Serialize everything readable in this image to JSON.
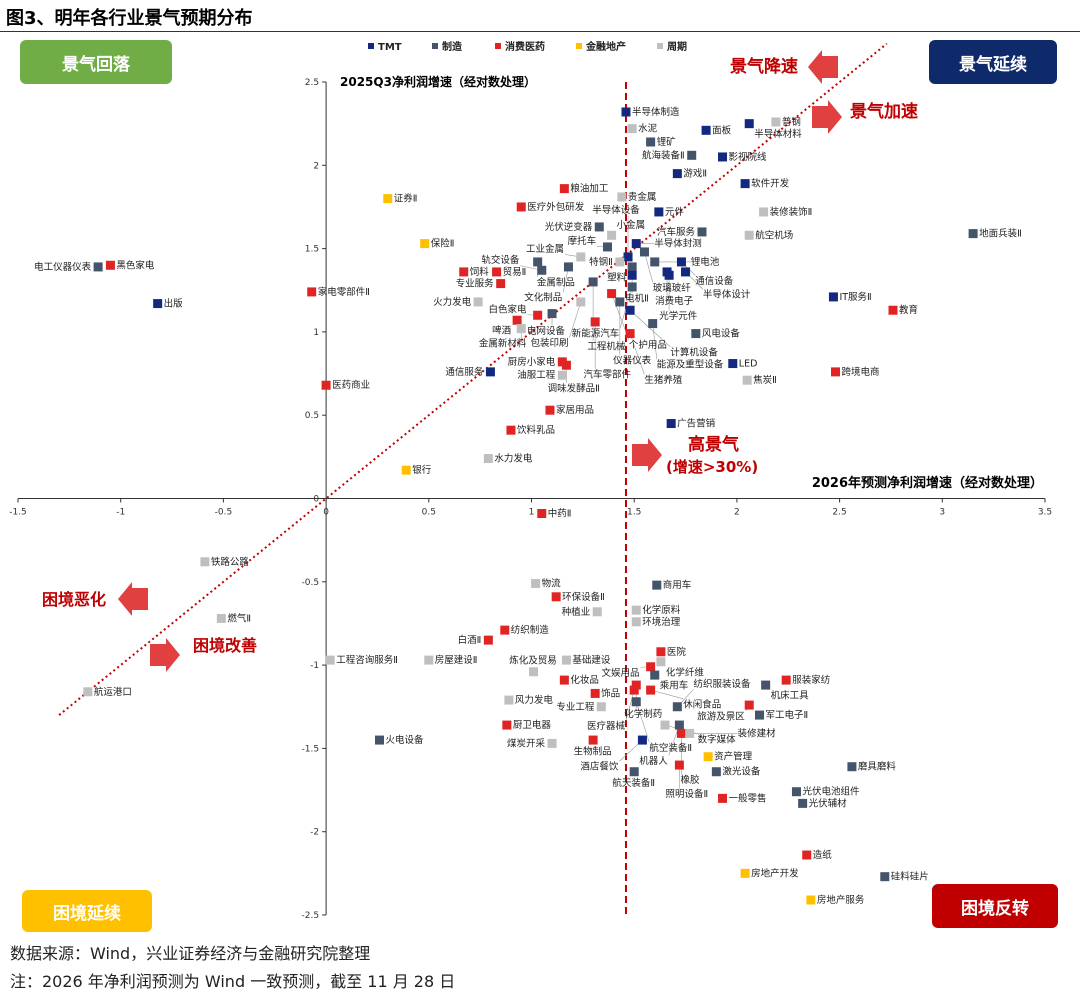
{
  "figure_title": "图3、明年各行业景气预期分布",
  "quadrants": {
    "top_left": "景气回落",
    "top_right": "景气延续",
    "bottom_left": "困境延续",
    "bottom_right": "困境反转"
  },
  "annotations": {
    "decel": "景气降速",
    "accel": "景气加速",
    "high": "高景气",
    "high_sub": "(增速>30%)",
    "worsen": "困境恶化",
    "improve": "困境改善"
  },
  "footer": {
    "source": "数据来源：Wind，兴业证券经济与金融研究院整理",
    "note": "注：2026 年净利润预测为 Wind 一致预测，截至 11 月 28 日"
  },
  "colors": {
    "TMT": "#13287f",
    "制造": "#44546a",
    "消费医药": "#e02424",
    "金融地产": "#ffc000",
    "周期": "#bfbfbf",
    "accent": "#c00000"
  },
  "chart_data": {
    "type": "scatter",
    "xlabel": "2026年预测净利润增速（经对数处理）",
    "ylabel": "2025Q3净利润增速（经对数处理）",
    "xlim": [
      -1.5,
      3.5
    ],
    "ylim": [
      -2.5,
      2.5
    ],
    "xticks": [
      -1.5,
      -1,
      -0.5,
      0,
      0.5,
      1,
      1.5,
      2,
      2.5,
      3,
      3.5
    ],
    "yticks": [
      -2.5,
      -2,
      -1.5,
      -1,
      -0.5,
      0,
      0.5,
      1,
      1.5,
      2,
      2.5
    ],
    "legend": [
      "TMT",
      "制造",
      "消费医药",
      "金融地产",
      "周期"
    ],
    "legend_position": "top",
    "threshold_x": 1.46,
    "diagonal": "y=x",
    "points": [
      [
        "半导体制造",
        "TMT",
        1.46,
        2.32
      ],
      [
        "水泥",
        "周期",
        1.49,
        2.22
      ],
      [
        "锂矿",
        "制造",
        1.58,
        2.14
      ],
      [
        "航海装备Ⅱ",
        "制造",
        1.78,
        2.06
      ],
      [
        "面板",
        "TMT",
        1.85,
        2.21
      ],
      [
        "半导体材料",
        "TMT",
        2.06,
        2.25
      ],
      [
        "普钢",
        "周期",
        2.19,
        2.26
      ],
      [
        "影视院线",
        "TMT",
        1.93,
        2.05
      ],
      [
        "游戏Ⅱ",
        "TMT",
        1.71,
        1.95
      ],
      [
        "软件开发",
        "TMT",
        2.04,
        1.89
      ],
      [
        "粮油加工",
        "消费医药",
        1.16,
        1.86
      ],
      [
        "医疗外包研发",
        "消费医药",
        0.95,
        1.75
      ],
      [
        "贵金属",
        "周期",
        1.44,
        1.81
      ],
      [
        "证券Ⅱ",
        "金融地产",
        0.3,
        1.8
      ],
      [
        "元件",
        "TMT",
        1.62,
        1.72
      ],
      [
        "装修装饰Ⅱ",
        "周期",
        2.13,
        1.72
      ],
      [
        "汽车服务",
        "制造",
        1.83,
        1.6
      ],
      [
        "航空机场",
        "周期",
        2.06,
        1.58
      ],
      [
        "地面兵装Ⅱ",
        "制造",
        3.15,
        1.59
      ],
      [
        "光伏逆变器",
        "制造",
        1.33,
        1.63
      ],
      [
        "小金属",
        "周期",
        1.39,
        1.58
      ],
      [
        "保险Ⅱ",
        "金融地产",
        0.48,
        1.53
      ],
      [
        "黑色家电",
        "消费医药",
        -1.05,
        1.4
      ],
      [
        "电工仪器仪表",
        "制造",
        -1.11,
        1.39
      ],
      [
        "出版",
        "TMT",
        -0.82,
        1.17
      ],
      [
        "家电零部件Ⅱ",
        "消费医药",
        -0.07,
        1.24
      ],
      [
        "半导体封测",
        "TMT",
        1.51,
        1.53
      ],
      [
        "摩托车",
        "制造",
        1.37,
        1.51
      ],
      [
        "玻璃玻纤",
        "制造",
        1.55,
        1.48
      ],
      [
        "半导体设备",
        "TMT",
        1.47,
        1.45
      ],
      [
        "锂电池",
        "制造",
        1.6,
        1.42
      ],
      [
        "特钢Ⅱ",
        "周期",
        1.43,
        1.42
      ],
      [
        "工业金属",
        "周期",
        1.24,
        1.45
      ],
      [
        "金属制品",
        "制造",
        1.03,
        1.42
      ],
      [
        "文化制品",
        "制造",
        1.18,
        1.39
      ],
      [
        "轨交设备",
        "制造",
        1.05,
        1.37
      ],
      [
        "通信设备",
        "TMT",
        1.73,
        1.42
      ],
      [
        "消费电子",
        "TMT",
        1.66,
        1.36
      ],
      [
        "半导体设计",
        "TMT",
        1.75,
        1.36
      ],
      [
        "光学元件",
        "TMT",
        1.67,
        1.34
      ],
      [
        "塑料",
        "制造",
        1.49,
        1.39
      ],
      [
        "电机Ⅱ",
        "TMT",
        1.49,
        1.34
      ],
      [
        "新能源汽车",
        "制造",
        1.49,
        1.27
      ],
      [
        "贸易Ⅱ",
        "消费医药",
        0.83,
        1.36
      ],
      [
        "饲料",
        "消费医药",
        0.67,
        1.36
      ],
      [
        "专业服务",
        "消费医药",
        0.85,
        1.29
      ],
      [
        "工程机械",
        "制造",
        1.3,
        1.3
      ],
      [
        "个护用品",
        "消费医药",
        1.39,
        1.23
      ],
      [
        "包装印刷",
        "周期",
        1.24,
        1.18
      ],
      [
        "仪器仪表",
        "制造",
        1.43,
        1.18
      ],
      [
        "计算机设备",
        "TMT",
        1.48,
        1.13
      ],
      [
        "白色家电",
        "消费医药",
        1.03,
        1.1
      ],
      [
        "火力发电",
        "周期",
        0.74,
        1.18
      ],
      [
        "啤酒",
        "消费医药",
        0.93,
        1.07
      ],
      [
        "金属新材料",
        "周期",
        0.95,
        1.02
      ],
      [
        "电网设备",
        "制造",
        1.1,
        1.11
      ],
      [
        "汽车零部件",
        "消费医药",
        1.31,
        1.06
      ],
      [
        "能源及重型设备",
        "制造",
        1.59,
        1.05
      ],
      [
        "风电设备",
        "制造",
        1.8,
        0.99
      ],
      [
        "生猪养殖",
        "消费医药",
        1.48,
        0.99
      ],
      [
        "LED",
        "TMT",
        1.98,
        0.81
      ],
      [
        "焦炭Ⅱ",
        "周期",
        2.05,
        0.71
      ],
      [
        "厨房小家电",
        "消费医药",
        1.15,
        0.82
      ],
      [
        "调味发酵品Ⅱ",
        "消费医药",
        1.17,
        0.8
      ],
      [
        "油服工程",
        "周期",
        1.15,
        0.74
      ],
      [
        "通信服务",
        "TMT",
        0.8,
        0.76
      ],
      [
        "医药商业",
        "消费医药",
        0.0,
        0.68
      ],
      [
        "家居用品",
        "消费医药",
        1.09,
        0.53
      ],
      [
        "广告营销",
        "TMT",
        1.68,
        0.45
      ],
      [
        "饮料乳品",
        "消费医药",
        0.9,
        0.41
      ],
      [
        "水力发电",
        "周期",
        0.79,
        0.24
      ],
      [
        "银行",
        "金融地产",
        0.39,
        0.17
      ],
      [
        "IT服务Ⅱ",
        "TMT",
        2.47,
        1.21
      ],
      [
        "教育",
        "消费医药",
        2.76,
        1.13
      ],
      [
        "跨境电商",
        "消费医药",
        2.48,
        0.76
      ],
      [
        "中药Ⅱ",
        "消费医药",
        1.05,
        -0.09
      ],
      [
        "铁路公路",
        "周期",
        -0.59,
        -0.38
      ],
      [
        "燃气Ⅱ",
        "周期",
        -0.51,
        -0.72
      ],
      [
        "航运港口",
        "周期",
        -1.16,
        -1.16
      ],
      [
        "物流",
        "周期",
        1.02,
        -0.51
      ],
      [
        "环保设备Ⅱ",
        "消费医药",
        1.12,
        -0.59
      ],
      [
        "种植业",
        "周期",
        1.32,
        -0.68
      ],
      [
        "商用车",
        "制造",
        1.61,
        -0.52
      ],
      [
        "化学原料",
        "周期",
        1.51,
        -0.67
      ],
      [
        "环境治理",
        "周期",
        1.51,
        -0.74
      ],
      [
        "纺织制造",
        "消费医药",
        0.87,
        -0.79
      ],
      [
        "白酒Ⅱ",
        "消费医药",
        0.79,
        -0.85
      ],
      [
        "房屋建设Ⅱ",
        "周期",
        0.5,
        -0.97
      ],
      [
        "工程咨询服务Ⅱ",
        "周期",
        0.02,
        -0.97
      ],
      [
        "基础建设",
        "周期",
        1.17,
        -0.97
      ],
      [
        "炼化及贸易",
        "周期",
        1.01,
        -1.04
      ],
      [
        "医院",
        "消费医药",
        1.63,
        -0.92
      ],
      [
        "化学纤维",
        "周期",
        1.63,
        -0.98
      ],
      [
        "文娱用品",
        "消费医药",
        1.58,
        -1.01
      ],
      [
        "乘用车",
        "制造",
        1.6,
        -1.06
      ],
      [
        "化学制药",
        "消费医药",
        1.51,
        -1.12
      ],
      [
        "化妆品",
        "消费医药",
        1.16,
        -1.09
      ],
      [
        "饰品",
        "消费医药",
        1.31,
        -1.17
      ],
      [
        "医疗器械",
        "消费医药",
        1.5,
        -1.15
      ],
      [
        "休闲食品",
        "消费医药",
        1.58,
        -1.15
      ],
      [
        "风力发电",
        "周期",
        0.89,
        -1.21
      ],
      [
        "航空装备Ⅱ",
        "制造",
        1.51,
        -1.22
      ],
      [
        "专业工程",
        "周期",
        1.34,
        -1.25
      ],
      [
        "纺织服装设备",
        "制造",
        1.71,
        -1.25
      ],
      [
        "服装家纺",
        "消费医药",
        2.24,
        -1.09
      ],
      [
        "机床工具",
        "制造",
        2.14,
        -1.12
      ],
      [
        "旅游及景区",
        "消费医药",
        2.06,
        -1.24
      ],
      [
        "军工电子Ⅱ",
        "制造",
        2.11,
        -1.3
      ],
      [
        "数字媒体",
        "周期",
        1.65,
        -1.36
      ],
      [
        "机器人",
        "制造",
        1.72,
        -1.36
      ],
      [
        "橡胶",
        "消费医药",
        1.73,
        -1.41
      ],
      [
        "装修建材",
        "周期",
        1.77,
        -1.41
      ],
      [
        "厨卫电器",
        "消费医药",
        0.88,
        -1.36
      ],
      [
        "煤炭开采",
        "周期",
        1.1,
        -1.47
      ],
      [
        "生物制品",
        "消费医药",
        1.3,
        -1.45
      ],
      [
        "酒店餐饮",
        "TMT",
        1.54,
        -1.45
      ],
      [
        "火电设备",
        "制造",
        0.26,
        -1.45
      ],
      [
        "资产管理",
        "金融地产",
        1.86,
        -1.55
      ],
      [
        "照明设备Ⅱ",
        "消费医药",
        1.72,
        -1.6
      ],
      [
        "航天装备Ⅱ",
        "制造",
        1.5,
        -1.64
      ],
      [
        "磨具磨料",
        "制造",
        2.56,
        -1.61
      ],
      [
        "激光设备",
        "制造",
        1.9,
        -1.64
      ],
      [
        "光伏电池组件",
        "制造",
        2.29,
        -1.76
      ],
      [
        "光伏辅材",
        "制造",
        2.32,
        -1.83
      ],
      [
        "一般零售",
        "消费医药",
        1.93,
        -1.8
      ],
      [
        "造纸",
        "消费医药",
        2.34,
        -2.14
      ],
      [
        "硅料硅片",
        "制造",
        2.72,
        -2.27
      ],
      [
        "房地产开发",
        "金融地产",
        2.04,
        -2.25
      ],
      [
        "房地产服务",
        "金融地产",
        2.36,
        -2.41
      ]
    ]
  }
}
